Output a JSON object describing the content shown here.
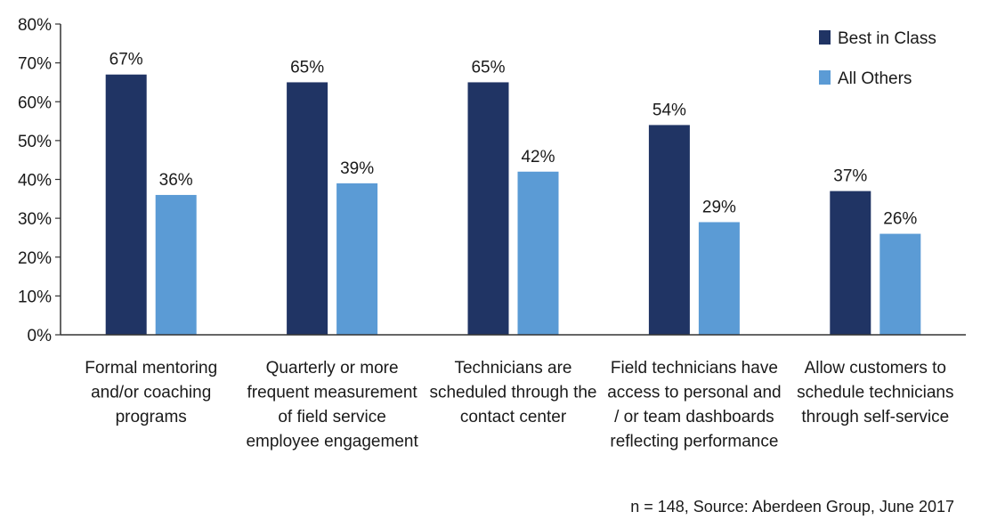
{
  "chart_data": {
    "type": "bar",
    "categories": [
      [
        "Formal mentoring",
        "and/or coaching",
        "programs"
      ],
      [
        "Quarterly or more",
        "frequent measurement",
        "of field service",
        "employee engagement"
      ],
      [
        "Technicians are",
        "scheduled through the",
        "contact center"
      ],
      [
        "Field technicians have",
        "access to personal and",
        "/ or team dashboards",
        "reflecting performance"
      ],
      [
        "Allow customers to",
        "schedule technicians",
        "through self-service"
      ]
    ],
    "series": [
      {
        "name": "Best in Class",
        "values": [
          67,
          65,
          65,
          54,
          37
        ],
        "labels": [
          "67%",
          "65%",
          "65%",
          "54%",
          "37%"
        ],
        "color": "#203464"
      },
      {
        "name": "All Others",
        "values": [
          36,
          39,
          42,
          29,
          26
        ],
        "labels": [
          "36%",
          "39%",
          "42%",
          "29%",
          "26%"
        ],
        "color": "#5b9bd5"
      }
    ],
    "yticks": [
      "0%",
      "10%",
      "20%",
      "30%",
      "40%",
      "50%",
      "60%",
      "70%",
      "80%"
    ],
    "ylim": [
      0,
      80
    ],
    "grid": false,
    "legend_position": "top-right",
    "source_note": "n = 148, Source: Aberdeen Group, June 2017"
  }
}
